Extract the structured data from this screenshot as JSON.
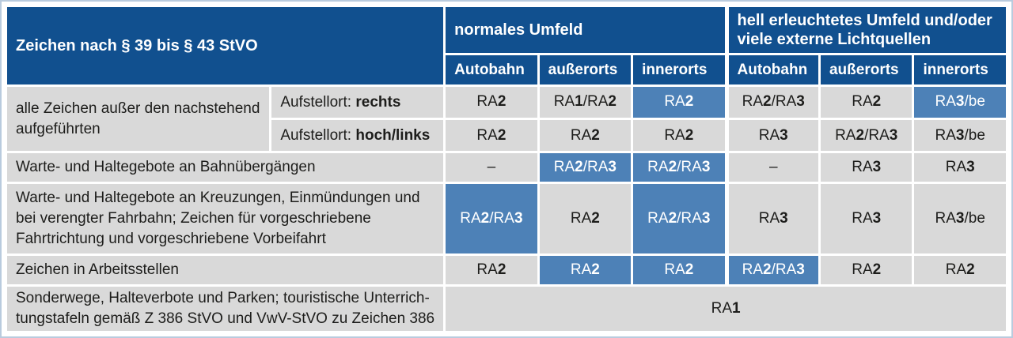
{
  "colors": {
    "header_blue": "#11508f",
    "highlight_blue": "#4d81b7",
    "cell_gray": "#d9d9d9",
    "frame_blue": "#b9cbde",
    "text_dark": "#1d1d1b"
  },
  "header": {
    "title": "Zeichen nach § 39 bis § 43 StVO",
    "groups": [
      {
        "label": "normales Umfeld",
        "columns": [
          "Autobahn",
          "außerorts",
          "innerorts"
        ]
      },
      {
        "label": "hell erleuchtetes Umfeld und/oder viele externe Lichtquellen",
        "columns": [
          "Autobahn",
          "außerorts",
          "innerorts"
        ]
      }
    ]
  },
  "rows": [
    {
      "label": "alle Zeichen außer den nachstehend aufgeführten",
      "variants": [
        {
          "prefix": "Aufstellort: ",
          "bold": "rechts",
          "cells": [
            {
              "t": "RA2",
              "hl": false
            },
            {
              "t": "RA1/RA2",
              "hl": false
            },
            {
              "t": "RA2",
              "hl": true
            },
            {
              "t": "RA2/RA3",
              "hl": false
            },
            {
              "t": "RA2",
              "hl": false
            },
            {
              "t": "RA3/be",
              "hl": true
            }
          ]
        },
        {
          "prefix": "Aufstellort: ",
          "bold": "hoch/links",
          "cells": [
            {
              "t": "RA2",
              "hl": false
            },
            {
              "t": "RA2",
              "hl": false
            },
            {
              "t": "RA2",
              "hl": false
            },
            {
              "t": "RA3",
              "hl": false
            },
            {
              "t": "RA2/RA3",
              "hl": false
            },
            {
              "t": "RA3/be",
              "hl": false
            }
          ]
        }
      ]
    },
    {
      "label": "Warte- und Haltegebote an Bahnübergängen",
      "cells": [
        {
          "t": "–",
          "hl": false
        },
        {
          "t": "RA2/RA3",
          "hl": true
        },
        {
          "t": "RA2/RA3",
          "hl": true
        },
        {
          "t": "–",
          "hl": false
        },
        {
          "t": "RA3",
          "hl": false
        },
        {
          "t": "RA3",
          "hl": false
        }
      ]
    },
    {
      "label": "Warte- und Haltegebote an Kreuzungen, Einmündungen und bei verengter Fahrbahn; Zeichen für vorgeschriebene Fahrtrichtung und vorgeschriebene Vorbeifahrt",
      "cells": [
        {
          "t": "RA2/RA3",
          "hl": true
        },
        {
          "t": "RA2",
          "hl": false
        },
        {
          "t": "RA2/RA3",
          "hl": true
        },
        {
          "t": "RA3",
          "hl": false
        },
        {
          "t": "RA3",
          "hl": false
        },
        {
          "t": "RA3/be",
          "hl": false
        }
      ]
    },
    {
      "label": "Zeichen in Arbeitsstellen",
      "cells": [
        {
          "t": "RA2",
          "hl": false
        },
        {
          "t": "RA2",
          "hl": true
        },
        {
          "t": "RA2",
          "hl": true
        },
        {
          "t": "RA2/RA3",
          "hl": true
        },
        {
          "t": "RA2",
          "hl": false
        },
        {
          "t": "RA2",
          "hl": false
        }
      ]
    },
    {
      "label_lines": [
        "Sonderwege, Halteverbote und Parken; touristische Unterrich-",
        "tungstafeln gemäß Z 386 StVO und VwV-StVO zu Zeichen 386"
      ],
      "cells": [
        {
          "t": "RA1",
          "hl": false
        }
      ]
    }
  ]
}
